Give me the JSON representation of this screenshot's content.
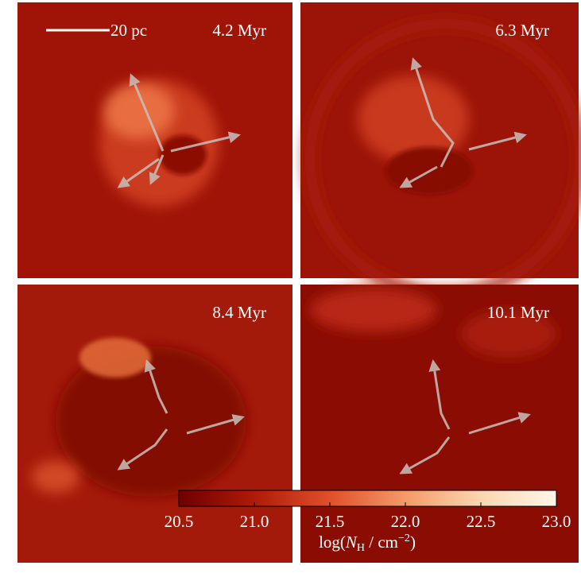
{
  "scale_bar": {
    "label": "20 pc"
  },
  "panels": [
    {
      "time": "4.2 Myr"
    },
    {
      "time": "6.3 Myr"
    },
    {
      "time": "8.4 Myr"
    },
    {
      "time": "10.1 Myr"
    }
  ],
  "colorbar": {
    "range": [
      20.5,
      23.0
    ],
    "ticks": [
      20.5,
      {
        "value": 21.0,
        "label": "21.0"
      },
      21.5,
      {
        "value": 22.0,
        "label": "22.0"
      },
      22.5,
      {
        "value": 23.0,
        "label": "23.0"
      }
    ],
    "label": {
      "parts": [
        "log(",
        "N",
        "H",
        " / cm",
        "−2",
        ")"
      ]
    },
    "colors": [
      "#6e0000",
      "#b01a08",
      "#e0502a",
      "#f59a68",
      "#fcd6b0",
      "#fff6ea"
    ]
  }
}
